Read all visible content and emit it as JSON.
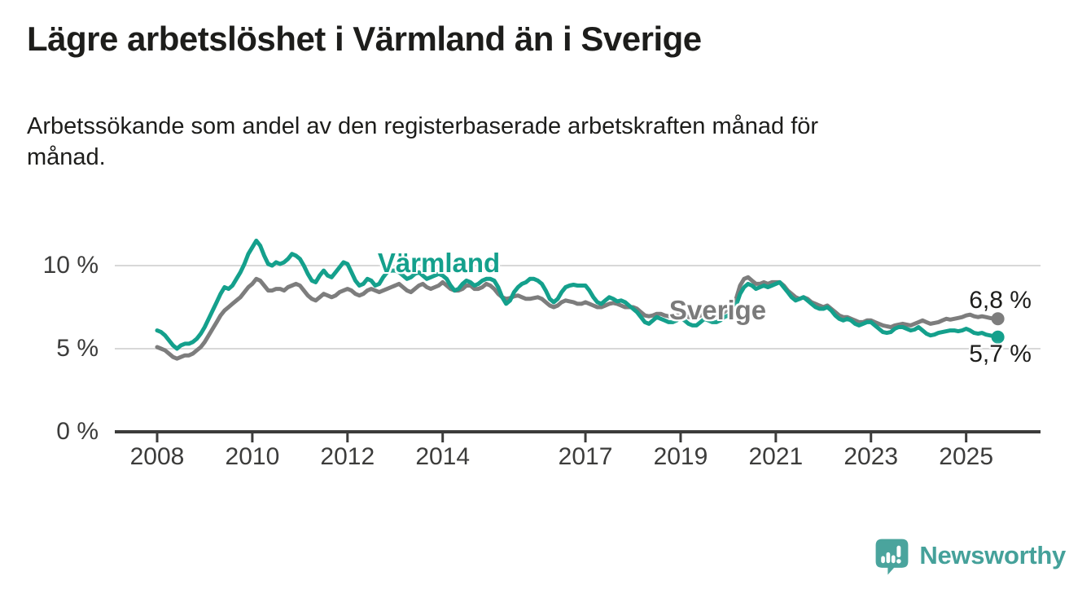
{
  "header": {
    "title": "Lägre arbetslöshet i Värmland än i Sverige",
    "subtitle_line1": "Arbetssökande som andel av den registerbaserade arbetskraften månad för",
    "subtitle_line2": "månad."
  },
  "chart_data": {
    "type": "line",
    "unit": "%",
    "frequency": "monthly",
    "x_start_year": 2008,
    "x_start_month": 1,
    "x_end_label": "2025-09",
    "x_tick_years": [
      2008,
      2010,
      2012,
      2014,
      2017,
      2019,
      2021,
      2023,
      2025
    ],
    "y_ticks": [
      {
        "value": 0,
        "label": "0 %"
      },
      {
        "value": 5,
        "label": "5 %"
      },
      {
        "value": 10,
        "label": "10 %"
      }
    ],
    "ylim": [
      0,
      12
    ],
    "grid": "horizontal-only",
    "legend": "inline-labels",
    "series": [
      {
        "name": "Värmland",
        "color": "#14a08c",
        "end_value": 5.7,
        "end_label": "5,7 %",
        "end_label_side": "below",
        "values": [
          6.1,
          6.0,
          5.8,
          5.5,
          5.2,
          5.0,
          5.2,
          5.3,
          5.3,
          5.4,
          5.6,
          5.9,
          6.3,
          6.8,
          7.3,
          7.8,
          8.3,
          8.7,
          8.6,
          8.8,
          9.2,
          9.6,
          10.1,
          10.7,
          11.1,
          11.5,
          11.2,
          10.6,
          10.1,
          10.0,
          10.2,
          10.1,
          10.2,
          10.4,
          10.7,
          10.6,
          10.4,
          10.0,
          9.5,
          9.1,
          9.0,
          9.4,
          9.7,
          9.4,
          9.3,
          9.6,
          9.9,
          10.2,
          10.1,
          9.6,
          9.1,
          8.8,
          8.9,
          9.2,
          9.1,
          8.8,
          8.9,
          9.3,
          9.6,
          9.7,
          9.7,
          9.6,
          9.4,
          9.2,
          9.3,
          9.5,
          9.6,
          9.4,
          9.2,
          9.3,
          9.4,
          9.5,
          9.4,
          9.2,
          8.8,
          8.5,
          8.6,
          8.9,
          9.1,
          9.0,
          8.8,
          8.9,
          9.1,
          9.2,
          9.2,
          9.1,
          8.7,
          8.1,
          7.7,
          7.9,
          8.4,
          8.7,
          8.9,
          9.0,
          9.2,
          9.2,
          9.1,
          8.9,
          8.5,
          8.0,
          7.8,
          8.0,
          8.4,
          8.7,
          8.8,
          8.85,
          8.8,
          8.8,
          8.8,
          8.5,
          8.1,
          7.8,
          7.7,
          7.9,
          8.1,
          8.0,
          7.85,
          7.9,
          7.8,
          7.6,
          7.4,
          7.2,
          6.9,
          6.6,
          6.5,
          6.7,
          6.9,
          6.8,
          6.7,
          6.6,
          6.6,
          6.7,
          6.9,
          6.7,
          6.5,
          6.4,
          6.4,
          6.6,
          6.8,
          6.7,
          6.6,
          6.6,
          6.7,
          6.9,
          7.0,
          7.1,
          7.6,
          8.3,
          8.7,
          8.9,
          8.8,
          8.6,
          8.7,
          8.8,
          8.7,
          8.8,
          8.9,
          9.0,
          8.7,
          8.4,
          8.1,
          7.9,
          8.0,
          8.1,
          7.9,
          7.7,
          7.5,
          7.4,
          7.4,
          7.5,
          7.3,
          7.0,
          6.8,
          6.7,
          6.8,
          6.7,
          6.5,
          6.4,
          6.5,
          6.6,
          6.6,
          6.4,
          6.2,
          6.0,
          5.95,
          6.0,
          6.2,
          6.3,
          6.3,
          6.2,
          6.1,
          6.15,
          6.3,
          6.1,
          5.9,
          5.8,
          5.85,
          5.95,
          6.0,
          6.05,
          6.1,
          6.1,
          6.05,
          6.1,
          6.2,
          6.1,
          5.95,
          5.9,
          5.95,
          5.85,
          5.8,
          5.75,
          5.7
        ]
      },
      {
        "name": "Sverige",
        "color": "#7d7d7d",
        "end_value": 6.8,
        "end_label": "6,8 %",
        "end_label_side": "above",
        "values": [
          5.1,
          5.0,
          4.9,
          4.7,
          4.5,
          4.4,
          4.5,
          4.6,
          4.6,
          4.7,
          4.9,
          5.1,
          5.4,
          5.8,
          6.2,
          6.6,
          7.0,
          7.3,
          7.5,
          7.7,
          7.9,
          8.1,
          8.4,
          8.7,
          8.9,
          9.2,
          9.1,
          8.8,
          8.5,
          8.5,
          8.6,
          8.6,
          8.5,
          8.7,
          8.8,
          8.9,
          8.8,
          8.5,
          8.2,
          8.0,
          7.9,
          8.1,
          8.3,
          8.2,
          8.1,
          8.2,
          8.4,
          8.5,
          8.6,
          8.5,
          8.3,
          8.2,
          8.3,
          8.5,
          8.6,
          8.5,
          8.4,
          8.5,
          8.6,
          8.7,
          8.8,
          8.9,
          8.7,
          8.5,
          8.4,
          8.6,
          8.8,
          8.9,
          8.7,
          8.6,
          8.7,
          8.8,
          9.0,
          8.8,
          8.6,
          8.5,
          8.5,
          8.6,
          8.8,
          8.8,
          8.6,
          8.6,
          8.7,
          8.9,
          8.8,
          8.6,
          8.3,
          8.1,
          8.0,
          8.05,
          8.15,
          8.2,
          8.1,
          8.0,
          8.0,
          8.05,
          8.1,
          8.0,
          7.8,
          7.6,
          7.5,
          7.6,
          7.8,
          7.9,
          7.85,
          7.8,
          7.7,
          7.7,
          7.8,
          7.7,
          7.6,
          7.5,
          7.5,
          7.6,
          7.7,
          7.75,
          7.7,
          7.6,
          7.5,
          7.5,
          7.5,
          7.4,
          7.2,
          7.0,
          6.95,
          7.0,
          7.1,
          7.1,
          7.0,
          6.95,
          6.95,
          7.0,
          7.0,
          7.0,
          6.9,
          6.9,
          6.9,
          7.0,
          7.1,
          7.1,
          7.0,
          7.0,
          7.1,
          7.2,
          7.4,
          7.5,
          8.0,
          8.8,
          9.2,
          9.3,
          9.1,
          8.9,
          8.9,
          9.0,
          8.9,
          9.0,
          9.0,
          9.0,
          8.8,
          8.5,
          8.3,
          8.1,
          8.0,
          8.1,
          8.0,
          7.8,
          7.7,
          7.6,
          7.5,
          7.6,
          7.4,
          7.2,
          7.0,
          6.9,
          6.9,
          6.8,
          6.7,
          6.6,
          6.6,
          6.7,
          6.7,
          6.6,
          6.5,
          6.4,
          6.35,
          6.3,
          6.4,
          6.45,
          6.5,
          6.45,
          6.4,
          6.5,
          6.6,
          6.7,
          6.6,
          6.5,
          6.55,
          6.6,
          6.7,
          6.8,
          6.75,
          6.8,
          6.85,
          6.9,
          7.0,
          7.05,
          6.95,
          6.9,
          6.95,
          6.9,
          6.85,
          6.8,
          6.8
        ]
      }
    ],
    "annotations": [
      {
        "text": "Värmland",
        "x_year": 2013.92,
        "y_value": 10.15,
        "color": "#14a08c"
      },
      {
        "text": "Sverige",
        "x_year": 2019.78,
        "y_value": 7.3,
        "color": "#7b7b7b"
      }
    ]
  },
  "footer": {
    "brand": "Newsworthy",
    "logo_icon": "newsworthy-speech-bubble-chart-icon"
  },
  "colors": {
    "background": "#ffffff",
    "title": "#1d1d1b",
    "axis": "#3c3c3b",
    "grid": "#d8d8d8",
    "varmland": "#14a08c",
    "sverige": "#7d7d7d",
    "logo": "#4aa49d"
  }
}
